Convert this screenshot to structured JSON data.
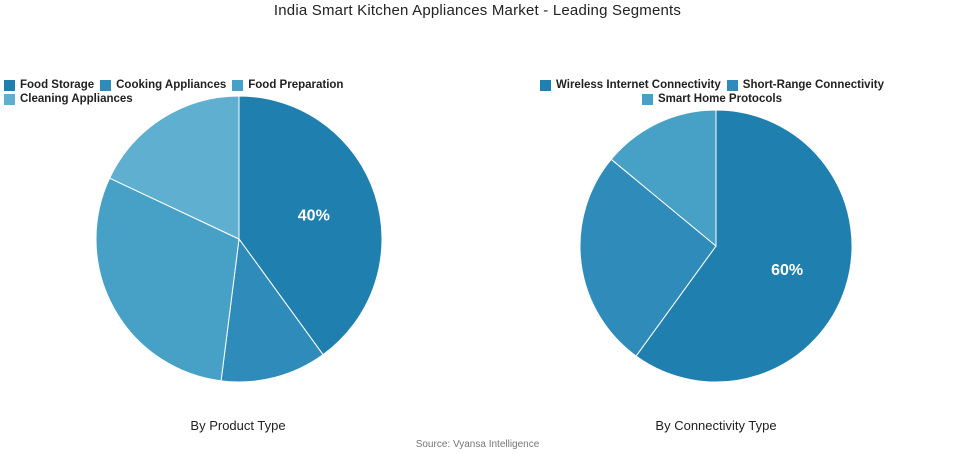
{
  "title": "India Smart Kitchen Appliances Market - Leading Segments",
  "source": "Source: Vyansa Intelligence",
  "chart_data": [
    {
      "type": "pie",
      "caption": "By Product Type",
      "legend_placement": "top",
      "slices": [
        {
          "name": "Food Storage",
          "value": 40,
          "label": "40%",
          "color": "#1f7fae"
        },
        {
          "name": "Cooking Appliances",
          "value": 12,
          "label": "",
          "color": "#2f8cba"
        },
        {
          "name": "Food Preparation",
          "value": 30,
          "label": "",
          "color": "#47a1c7"
        },
        {
          "name": "Cleaning Appliances",
          "value": 18,
          "label": "",
          "color": "#5fb0d0"
        }
      ]
    },
    {
      "type": "pie",
      "caption": "By Connectivity Type",
      "legend_placement": "top",
      "slices": [
        {
          "name": "Wireless Internet Connectivity",
          "value": 60,
          "label": "60%",
          "color": "#1f7fae"
        },
        {
          "name": "Short-Range Connectivity",
          "value": 26,
          "label": "",
          "color": "#2f8cba"
        },
        {
          "name": "Smart Home Protocols",
          "value": 14,
          "label": "",
          "color": "#47a1c7"
        }
      ]
    }
  ]
}
